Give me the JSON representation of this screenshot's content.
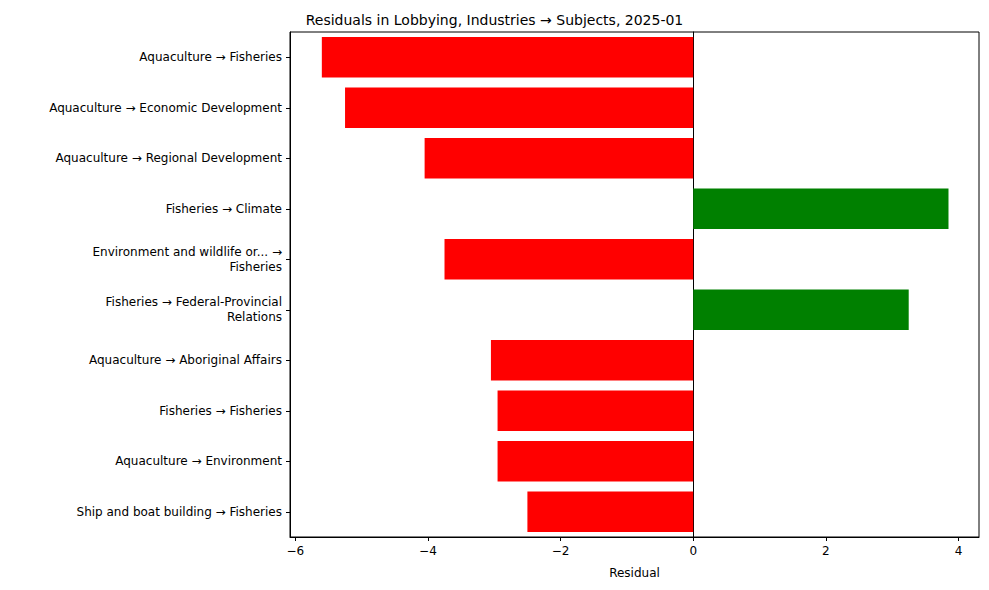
{
  "chart_data": {
    "type": "bar",
    "orientation": "horizontal",
    "title": "Residuals in Lobbying, Industries → Subjects, 2025-01",
    "x_label": "Residual",
    "categories": [
      "Aquaculture → Fisheries",
      "Aquaculture → Economic Development",
      "Aquaculture → Regional Development",
      "Fisheries → Climate",
      "Environment and wildlife or... →\nFisheries",
      "Fisheries → Federal-Provincial\nRelations",
      "Aquaculture → Aboriginal Affairs",
      "Fisheries → Fisheries",
      "Aquaculture → Environment",
      "Ship and boat building → Fisheries"
    ],
    "values": [
      -5.6,
      -5.25,
      -4.05,
      3.85,
      -3.75,
      3.25,
      -3.05,
      -2.95,
      -2.95,
      -2.5
    ],
    "colors": [
      "#ff0000",
      "#ff0000",
      "#ff0000",
      "#008000",
      "#ff0000",
      "#008000",
      "#ff0000",
      "#ff0000",
      "#ff0000",
      "#ff0000"
    ],
    "xlim": [
      -6.08,
      4.31
    ],
    "xticks": [
      {
        "value": -6,
        "label": "−6"
      },
      {
        "value": -4,
        "label": "−4"
      },
      {
        "value": -2,
        "label": "−2"
      },
      0,
      2,
      4
    ],
    "grid": false
  }
}
